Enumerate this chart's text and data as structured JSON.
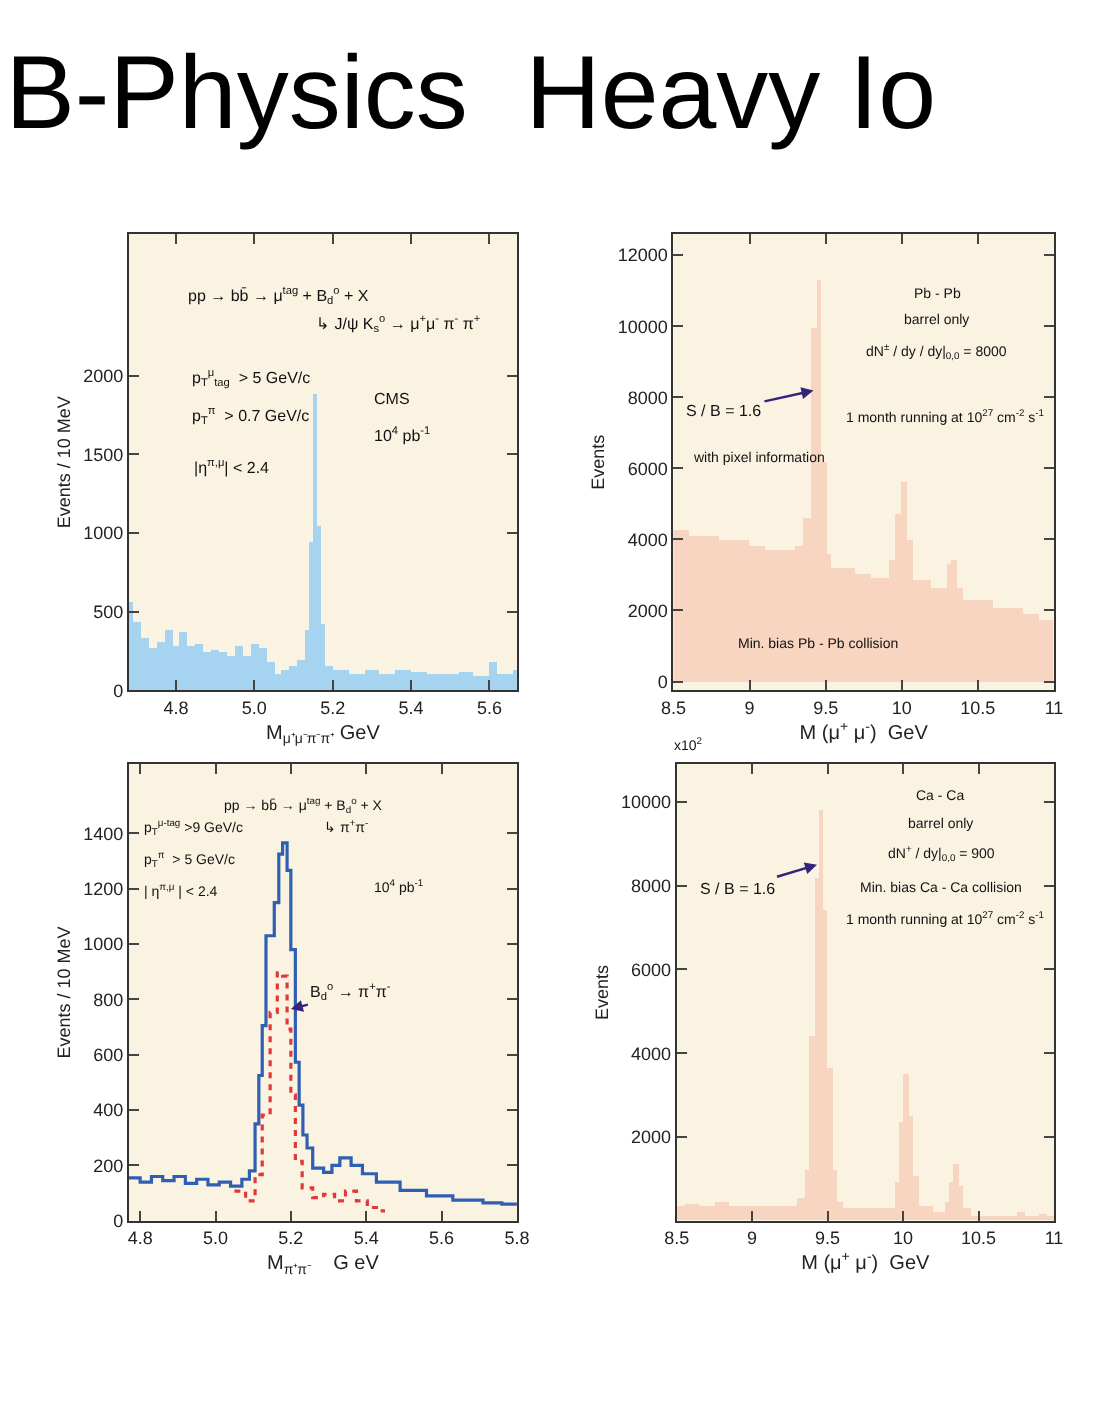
{
  "chart_data": [
    {
      "type": "histogram",
      "title": "B-Physics  Heavy Io",
      "xlabel": "M$_{μ⁺μ⁻π⁻π⁺}$ GeV",
      "ylabel": "Events / 10 MeV",
      "color": "#a6d3f0",
      "bins": [
        4.68,
        4.69,
        4.71,
        4.73,
        4.75,
        4.77,
        4.79,
        4.81,
        4.83,
        4.85,
        4.87,
        4.89,
        4.91,
        4.93,
        4.95,
        4.97,
        4.99,
        5.01,
        5.03,
        5.05,
        5.07,
        5.09,
        5.11,
        5.13,
        5.14,
        5.15,
        5.16,
        5.17,
        5.18,
        5.2,
        5.24,
        5.28,
        5.32,
        5.36,
        5.4,
        5.44,
        5.48,
        5.52,
        5.56,
        5.6,
        5.62,
        5.66,
        5.67
      ],
      "values": [
        560,
        430,
        330,
        270,
        310,
        380,
        280,
        370,
        280,
        300,
        250,
        260,
        240,
        220,
        280,
        220,
        290,
        270,
        180,
        100,
        130,
        160,
        200,
        390,
        950,
        1880,
        1050,
        420,
        150,
        130,
        110,
        130,
        100,
        130,
        120,
        110,
        100,
        120,
        90,
        180,
        110,
        130
      ],
      "xlim": [
        4.68,
        5.67
      ],
      "ylim": [
        0,
        2900
      ],
      "xticks": [
        4.8,
        {
          "value": 5.0,
          "label": "5.0"
        },
        5.2,
        5.4,
        5.6
      ],
      "yticks": [
        0,
        500,
        1000,
        1500,
        2000
      ],
      "annotations": [
        "pp → bb̄ → μ$^{tag}$ + B$_{d}$$^{o}$ + X",
        "↳ J/ψ K$_{s}$$^{o}$ → μ$^{+}$μ$^{-}$ π$^{-}$ π$^{+}$",
        "p$_{T}$$^{μ}$$_{tag}$  > 5 GeV/c",
        "p$_{T}$$^{π}$  > 0.7 GeV/c",
        "|η$^{π,μ}$| < 2.4",
        "CMS",
        "10$^{4}$ pb$^{-1}$"
      ],
      "grid": false
    },
    {
      "type": "histogram",
      "xlabel": "M (μ$^{+}$ μ$^{-}$)  GeV",
      "ylabel": "Events",
      "color": "#f7d5c0",
      "bins": [
        8.5,
        8.6,
        8.8,
        9.0,
        9.1,
        9.2,
        9.3,
        9.36,
        9.41,
        9.45,
        9.475,
        9.51,
        9.54,
        9.7,
        9.8,
        9.92,
        9.96,
        10.0,
        10.04,
        10.08,
        10.2,
        10.3,
        10.33,
        10.37,
        10.4,
        10.6,
        10.8,
        10.9,
        11.0
      ],
      "values": [
        4250,
        4100,
        3970,
        3820,
        3690,
        3690,
        3800,
        4620,
        9930,
        11320,
        6200,
        3590,
        3220,
        3030,
        2940,
        3410,
        4710,
        5600,
        3970,
        2850,
        2660,
        3320,
        3410,
        2660,
        2290,
        2070,
        1920,
        1730
      ],
      "xlim": [
        8.5,
        11
      ],
      "ylim": [
        -250,
        12600
      ],
      "xticks": [
        8.5,
        9,
        9.5,
        10,
        10.5,
        11
      ],
      "yticks": [
        0,
        2000,
        4000,
        6000,
        8000,
        10000,
        12000
      ],
      "annotations": [
        "Pb - Pb",
        "barrel only",
        "dN$^{±}$ / dy / dy|$_{0,0}$ = 8000",
        {
          "text": "S / B = 1.6",
          "x": 9.42,
          "y": 8190
        },
        "with pixel information",
        "1 month running at 10$^{27}$ cm$^{-2}$ s$^{-1}$",
        "Min. bias Pb - Pb collision"
      ],
      "grid": false
    },
    {
      "type": "step",
      "xlabel": "M$_{π⁺π⁻}$    G eV",
      "ylabel": "Events / 10 MeV",
      "series": [
        {
          "color": "#2f5fb3",
          "line_style": "solid",
          "x": [
            4.77,
            4.8,
            4.83,
            4.86,
            4.89,
            4.92,
            4.95,
            4.98,
            5.01,
            5.04,
            5.07,
            5.09,
            5.105,
            5.115,
            5.124,
            5.134,
            5.156,
            5.168,
            5.178,
            5.19,
            5.2,
            5.212,
            5.222,
            5.232,
            5.243,
            5.258,
            5.287,
            5.309,
            5.33,
            5.36,
            5.39,
            5.427,
            5.49,
            5.56,
            5.63,
            5.71,
            5.76,
            5.8
          ],
          "values": [
            155,
            140,
            160,
            145,
            160,
            135,
            150,
            130,
            140,
            125,
            150,
            180,
            350,
            525,
            705,
            1030,
            1150,
            1325,
            1366,
            1266,
            980,
            573,
            418,
            310,
            263,
            190,
            175,
            200,
            227,
            200,
            170,
            140,
            110,
            90,
            75,
            65,
            60,
            60
          ]
        },
        {
          "color": "#e0393b",
          "line_style": "dotted",
          "x": [
            5.05,
            5.08,
            5.105,
            5.124,
            5.145,
            5.164,
            5.178,
            5.19,
            5.2,
            5.212,
            5.23,
            5.258,
            5.287,
            5.316,
            5.345,
            5.374,
            5.403,
            5.427,
            5.45
          ],
          "values": [
            107,
            72,
            167,
            382,
            753,
            896,
            884,
            693,
            454,
            215,
            119,
            84,
            96,
            72,
            107,
            72,
            48,
            36,
            36
          ]
        }
      ],
      "xlim": [
        4.77,
        5.8
      ],
      "ylim": [
        0,
        1650
      ],
      "xticks": [
        4.8,
        {
          "value": 5.0,
          "label": "5.0"
        },
        5.2,
        5.4,
        5.6,
        5.8
      ],
      "yticks": [
        0,
        200,
        400,
        600,
        800,
        1000,
        1200,
        1400
      ],
      "annotations": [
        "pp → bb̄ → μ$^{tag}$ + B$_{d}$$^{o}$ + X",
        "↳ π$^{+}$π$^{-}$",
        "p$_{T}$$^{μ-tag}$ >9 GeV/c",
        "p$_{T}$$^{π}$  > 5 GeV/c",
        "| η$^{π,μ}$ | < 2.4",
        "10$^{4}$ pb$^{-1}$",
        {
          "text": "B$_{d}$$^{o}$ → π$^{+}$π$^{-}$",
          "x": 5.2,
          "y": 765
        }
      ],
      "grid": false,
      "marker": "none"
    },
    {
      "type": "histogram",
      "xlabel": "M (μ$^{+}$ μ$^{-}$)  GeV",
      "ylabel": "Events",
      "color": "#f7d5c0",
      "bins": [
        8.5,
        8.55,
        8.65,
        8.75,
        8.85,
        9.0,
        9.3,
        9.35,
        9.38,
        9.41,
        9.44,
        9.47,
        9.5,
        9.53,
        9.56,
        9.6,
        9.95,
        9.98,
        10.0,
        10.04,
        10.07,
        10.1,
        10.2,
        10.27,
        10.3,
        10.33,
        10.37,
        10.4,
        10.45,
        10.75,
        10.8,
        10.9,
        10.95,
        11.0
      ],
      "values": [
        330,
        410,
        360,
        440,
        330,
        360,
        520,
        1230,
        4400,
        8190,
        9820,
        7400,
        3640,
        1230,
        440,
        290,
        920,
        2340,
        3490,
        2500,
        1080,
        360,
        210,
        440,
        920,
        1360,
        840,
        290,
        130,
        210,
        100,
        160,
        100
      ],
      "xlim": [
        8.5,
        11
      ],
      "ylim": [
        0,
        10900
      ],
      "xticks": [
        8.5,
        9,
        9.5,
        10,
        10.5,
        11
      ],
      "yticks": [
        2000,
        4000,
        6000,
        8000,
        10000
      ],
      "annotations": [
        "x10$^{2}$",
        "Ca - Ca",
        "barrel only",
        "dN$^{+}$ / dy|$_{0,0}$ = 900",
        {
          "text": "S / B = 1.6",
          "x": 9.43,
          "y": 8500
        },
        "Min. bias Ca - Ca collision",
        "1 month running at 10$^{27}$ cm$^{-2}$ s$^{-1}$"
      ],
      "grid": false
    }
  ]
}
